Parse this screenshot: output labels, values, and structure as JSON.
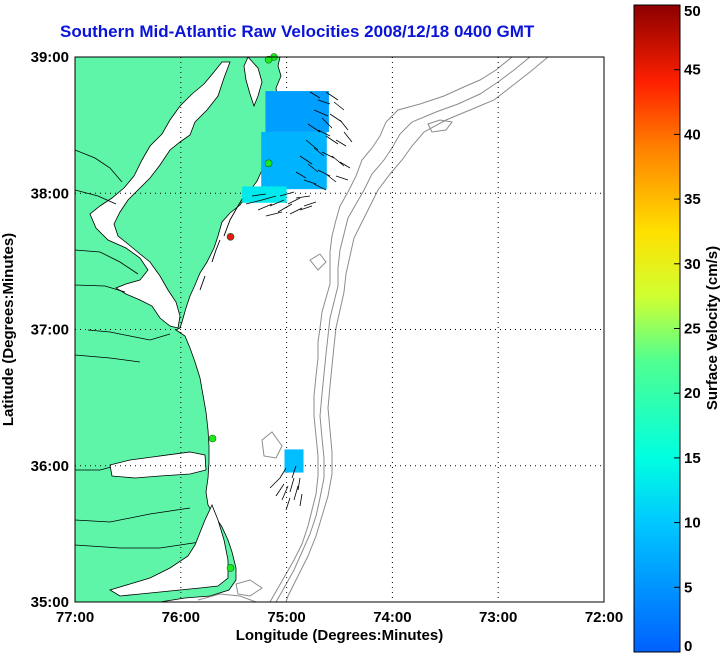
{
  "title": "Southern Mid-Atlantic Raw Velocities 2008/12/18 0400 GMT",
  "xlabel": "Longitude (Degrees:Minutes)",
  "ylabel": "Latitude (Degrees:Minutes)",
  "x_ticks": [
    "77:00",
    "76:00",
    "75:00",
    "74:00",
    "73:00",
    "72:00"
  ],
  "y_ticks": [
    "39:00",
    "38:00",
    "37:00",
    "36:00",
    "35:00"
  ],
  "colorbar": {
    "label": "Surface Velocity (cm/s)",
    "ticks": [
      "0",
      "5",
      "10",
      "15",
      "20",
      "25",
      "30",
      "35",
      "40",
      "45",
      "50"
    ],
    "range": [
      0,
      50
    ]
  },
  "colors": {
    "land": "#5ef5a8",
    "title": "#0a14d8",
    "bathymetry": "#8c8c8c",
    "station_active": "#1ee81e",
    "station_inactive": "#e21a1a"
  },
  "map_extent": {
    "lon": [
      -77,
      -72
    ],
    "lat": [
      35,
      39
    ]
  },
  "stations": [
    {
      "lon": -75.12,
      "lat": 39.0,
      "status": "active"
    },
    {
      "lon": -75.17,
      "lat": 38.98,
      "status": "active"
    },
    {
      "lon": -75.17,
      "lat": 38.22,
      "status": "active"
    },
    {
      "lon": -75.53,
      "lat": 37.68,
      "status": "inactive"
    },
    {
      "lon": -75.7,
      "lat": 36.2,
      "status": "active"
    },
    {
      "lon": -75.53,
      "lat": 35.25,
      "status": "active"
    }
  ],
  "velocity_patches": [
    {
      "lon_min": -75.24,
      "lon_max": -74.62,
      "lat_min": 38.03,
      "lat_max": 38.45,
      "speed": 8
    },
    {
      "lon_min": -75.2,
      "lon_max": -74.6,
      "lat_min": 38.45,
      "lat_max": 38.75,
      "speed": 6
    },
    {
      "lon_min": -75.42,
      "lon_max": -75.0,
      "lat_min": 37.93,
      "lat_max": 38.05,
      "speed": 13
    },
    {
      "lon_min": -75.02,
      "lon_max": -74.84,
      "lat_min": 35.95,
      "lat_max": 36.12,
      "speed": 9
    }
  ]
}
